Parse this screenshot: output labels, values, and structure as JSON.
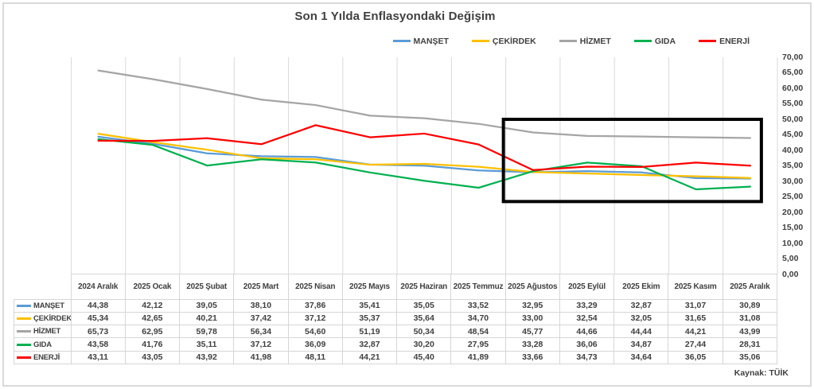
{
  "title": "Son 1 Yılda Enflasyondaki Değişim",
  "source": "Kaynak: TÜİK",
  "colors": {
    "manset": "#5B9BD5",
    "cekirdek": "#FFC000",
    "hizmet": "#A5A5A5",
    "gida": "#00B050",
    "enerji": "#FF0000",
    "gridline": "#D9D9D9",
    "text": "#404040",
    "highlight_box": "#000000"
  },
  "chart_data": {
    "type": "line",
    "title": "Son 1 Yılda Enflasyondaki Değişim",
    "categories": [
      "2024 Aralık",
      "2025 Ocak",
      "2025 Şubat",
      "2025 Mart",
      "2025 Nisan",
      "2025 Mayıs",
      "2025 Haziran",
      "2025 Temmuz",
      "2025 Ağustos",
      "2025 Eylül",
      "2025 Ekim",
      "2025 Kasım",
      "2025 Aralık"
    ],
    "series": [
      {
        "name": "MANŞET",
        "color": "#5B9BD5",
        "values": [
          44.38,
          42.12,
          39.05,
          38.1,
          37.86,
          35.41,
          35.05,
          33.52,
          32.95,
          33.29,
          32.87,
          31.07,
          30.89
        ]
      },
      {
        "name": "ÇEKİRDEK",
        "color": "#FFC000",
        "values": [
          45.34,
          42.65,
          40.21,
          37.42,
          37.12,
          35.37,
          35.64,
          34.7,
          33.0,
          32.54,
          32.05,
          31.65,
          31.08
        ]
      },
      {
        "name": "HİZMET",
        "color": "#A5A5A5",
        "values": [
          65.73,
          62.95,
          59.78,
          56.34,
          54.6,
          51.19,
          50.34,
          48.54,
          45.77,
          44.66,
          44.44,
          44.21,
          43.99
        ]
      },
      {
        "name": "GIDA",
        "color": "#00B050",
        "values": [
          43.58,
          41.76,
          35.11,
          37.12,
          36.09,
          32.87,
          30.2,
          27.95,
          33.28,
          36.06,
          34.87,
          27.44,
          28.31
        ]
      },
      {
        "name": "ENERJİ",
        "color": "#FF0000",
        "values": [
          43.11,
          43.05,
          43.92,
          41.98,
          48.11,
          44.21,
          45.4,
          41.89,
          33.66,
          34.73,
          34.64,
          36.05,
          35.06
        ]
      }
    ],
    "ylim": [
      0,
      70
    ],
    "y_tick_step": 5,
    "y_tick_labels": [
      "0,00",
      "5,00",
      "10,00",
      "15,00",
      "20,00",
      "25,00",
      "30,00",
      "35,00",
      "40,00",
      "45,00",
      "50,00",
      "55,00",
      "60,00",
      "65,00",
      "70,00"
    ],
    "decimal_separator": ",",
    "grid": "vertical-only",
    "legend_position": "top-right",
    "data_table_shown": true,
    "annotation": {
      "type": "highlight-box",
      "from_category": "2025 Ağustos",
      "to_category": "2025 Aralık",
      "value_top": 50,
      "value_bottom": 23.5,
      "color": "#000000"
    }
  }
}
